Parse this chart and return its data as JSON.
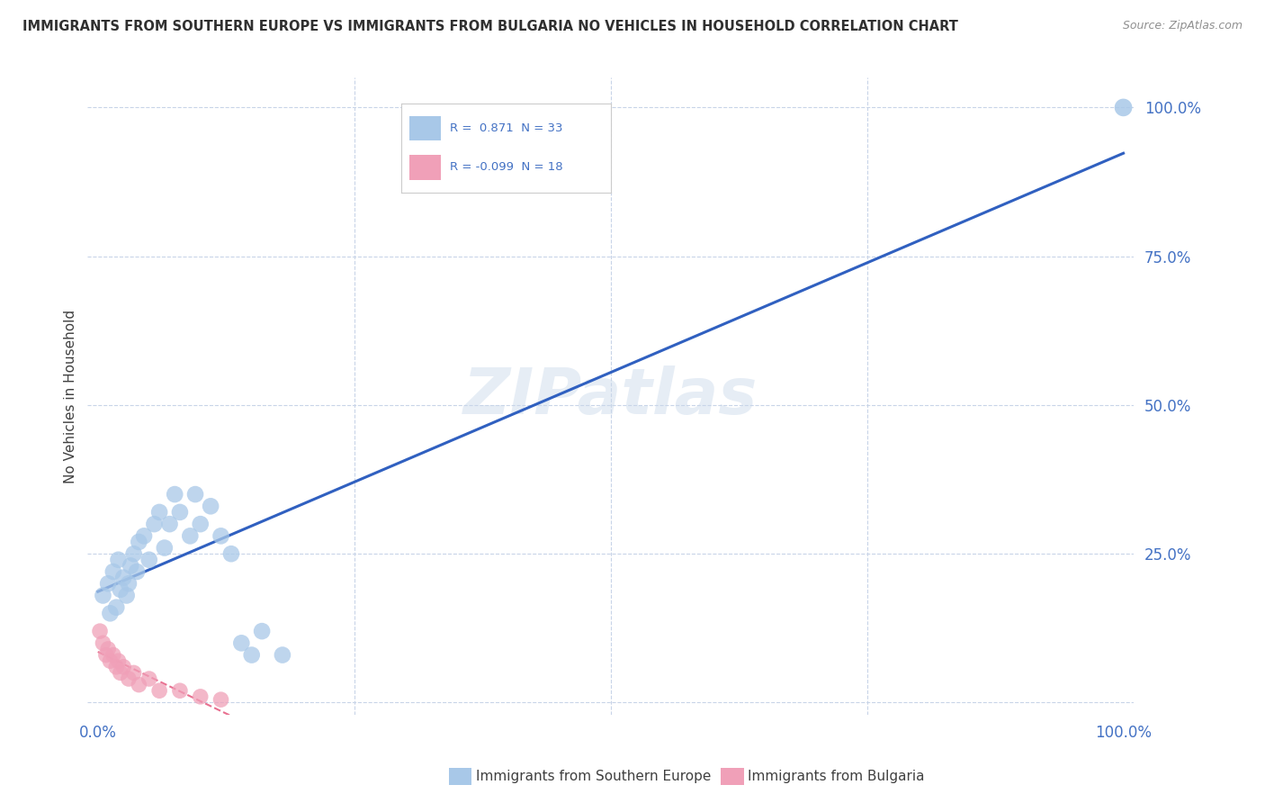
{
  "title": "IMMIGRANTS FROM SOUTHERN EUROPE VS IMMIGRANTS FROM BULGARIA NO VEHICLES IN HOUSEHOLD CORRELATION CHART",
  "source": "Source: ZipAtlas.com",
  "ylabel": "No Vehicles in Household",
  "watermark": "ZIPatlas",
  "blue_R": 0.871,
  "blue_N": 33,
  "pink_R": -0.099,
  "pink_N": 18,
  "blue_color": "#a8c8e8",
  "pink_color": "#f0a0b8",
  "blue_line_color": "#3060c0",
  "pink_line_color": "#e87090",
  "axis_color": "#4472c4",
  "grid_color": "#c8d4e8",
  "title_color": "#303030",
  "background_color": "#ffffff",
  "legend_label_blue": "Immigrants from Southern Europe",
  "legend_label_pink": "Immigrants from Bulgaria",
  "blue_scatter_x": [
    0.5,
    1.0,
    1.2,
    1.5,
    1.8,
    2.0,
    2.2,
    2.5,
    2.8,
    3.0,
    3.2,
    3.5,
    3.8,
    4.0,
    4.5,
    5.0,
    5.5,
    6.0,
    6.5,
    7.0,
    7.5,
    8.0,
    9.0,
    9.5,
    10.0,
    11.0,
    12.0,
    13.0,
    14.0,
    15.0,
    16.0,
    18.0,
    100.0
  ],
  "blue_scatter_y": [
    18.0,
    20.0,
    15.0,
    22.0,
    16.0,
    24.0,
    19.0,
    21.0,
    18.0,
    20.0,
    23.0,
    25.0,
    22.0,
    27.0,
    28.0,
    24.0,
    30.0,
    32.0,
    26.0,
    30.0,
    35.0,
    32.0,
    28.0,
    35.0,
    30.0,
    33.0,
    28.0,
    25.0,
    10.0,
    8.0,
    12.0,
    8.0,
    100.0
  ],
  "pink_scatter_x": [
    0.2,
    0.5,
    0.8,
    1.0,
    1.2,
    1.5,
    1.8,
    2.0,
    2.2,
    2.5,
    3.0,
    3.5,
    4.0,
    5.0,
    6.0,
    8.0,
    10.0,
    12.0
  ],
  "pink_scatter_y": [
    12.0,
    10.0,
    8.0,
    9.0,
    7.0,
    8.0,
    6.0,
    7.0,
    5.0,
    6.0,
    4.0,
    5.0,
    3.0,
    4.0,
    2.0,
    2.0,
    1.0,
    0.5
  ]
}
